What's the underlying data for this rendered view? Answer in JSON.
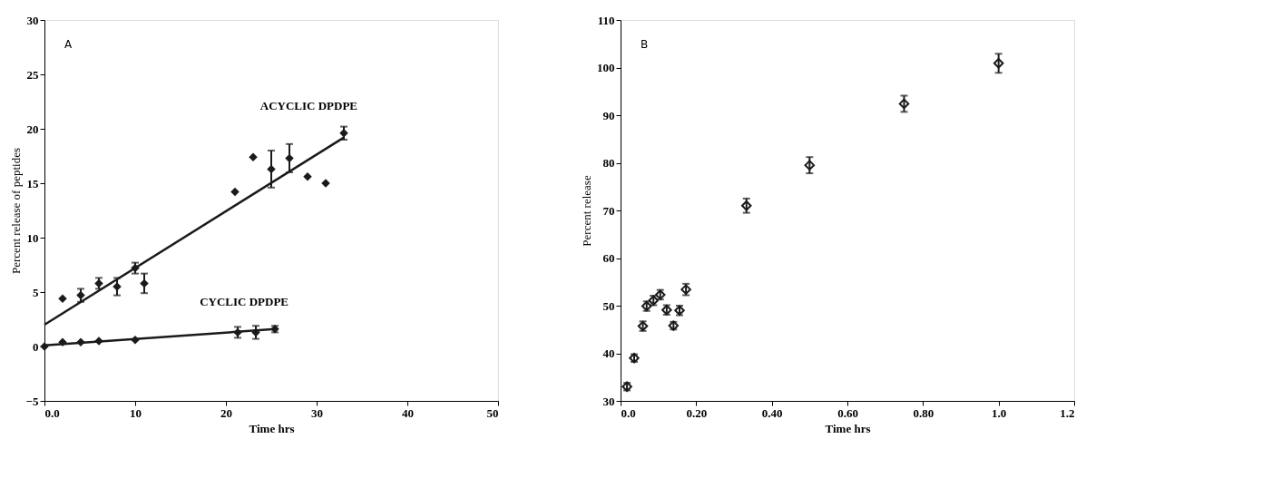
{
  "chart_data": [
    {
      "type": "scatter",
      "xlabel": "Time hrs",
      "ylabel": "Percent release of peptides",
      "annotations": [
        "A"
      ],
      "xlim": [
        0,
        50
      ],
      "ylim": [
        -5,
        30
      ],
      "xticks": [
        {
          "value": 0,
          "label": "0.0"
        },
        10,
        20,
        30,
        40,
        50
      ],
      "yticks": [
        -5,
        0,
        5,
        10,
        15,
        20,
        25,
        30
      ],
      "grid": false,
      "legend": false,
      "series": [
        {
          "name": "ACYCLIC DPDPE",
          "color": "#1a1a1a",
          "type": "scatter",
          "marker": "diamond",
          "x": [
            2,
            4,
            6,
            8,
            10,
            11,
            21,
            23,
            25,
            27,
            29,
            31,
            33
          ],
          "values": [
            4.4,
            4.7,
            5.8,
            5.5,
            7.2,
            5.8,
            14.2,
            17.4,
            16.3,
            17.3,
            15.6,
            15.0,
            19.6
          ],
          "errors": [
            null,
            0.6,
            0.5,
            0.8,
            0.5,
            0.9,
            null,
            null,
            1.7,
            1.3,
            null,
            null,
            0.6
          ]
        },
        {
          "color": "#1a1a1a",
          "type": "line",
          "marker": "none",
          "line_style": "solid",
          "x": [
            0,
            33
          ],
          "values": [
            2.0,
            19.2
          ]
        },
        {
          "name": "CYCLIC DPDPE",
          "color": "#1a1a1a",
          "type": "scatter",
          "marker": "diamond",
          "x": [
            0,
            2,
            4,
            6,
            10,
            21.3,
            23.3,
            25.4
          ],
          "values": [
            0,
            0.4,
            0.4,
            0.5,
            0.6,
            1.3,
            1.3,
            1.6
          ],
          "errors": [
            null,
            null,
            null,
            null,
            null,
            0.5,
            0.6,
            0.3
          ]
        },
        {
          "color": "#1a1a1a",
          "type": "line",
          "marker": "none",
          "line_style": "solid",
          "x": [
            0,
            25.4
          ],
          "values": [
            0.1,
            1.6
          ]
        }
      ]
    },
    {
      "type": "scatter",
      "xlabel": "Time hrs",
      "ylabel": "Percent release",
      "annotations": [
        "B"
      ],
      "xlim": [
        0,
        1.2
      ],
      "ylim": [
        30,
        110
      ],
      "xticks": [
        {
          "value": 0,
          "label": "0.0"
        },
        {
          "value": 0.2,
          "label": "0.20"
        },
        {
          "value": 0.4,
          "label": "0.40"
        },
        {
          "value": 0.6,
          "label": "0.60"
        },
        {
          "value": 0.8,
          "label": "0.80"
        },
        {
          "value": 1.0,
          "label": "1.0"
        },
        1.2
      ],
      "yticks": [
        30,
        40,
        50,
        60,
        70,
        80,
        90,
        100,
        110
      ],
      "grid": false,
      "legend": false,
      "marker": "diamond",
      "series": [
        {
          "color": "#1a1a1a",
          "type": "scatter",
          "x": [
            0.017,
            0.036,
            0.059,
            0.069,
            0.087,
            0.105,
            0.122,
            0.14,
            0.156,
            0.173,
            0.333,
            0.5,
            0.75,
            1.0
          ],
          "values": [
            33.0,
            39.0,
            45.7,
            49.9,
            51.1,
            52.3,
            49.1,
            45.8,
            49.0,
            53.4,
            71.0,
            79.5,
            92.4,
            100.9
          ],
          "errors": [
            0.8,
            0.8,
            1.0,
            1.0,
            1.0,
            1.0,
            1.0,
            0.8,
            1.0,
            1.2,
            1.5,
            1.7,
            1.7,
            2.0
          ]
        }
      ]
    }
  ]
}
